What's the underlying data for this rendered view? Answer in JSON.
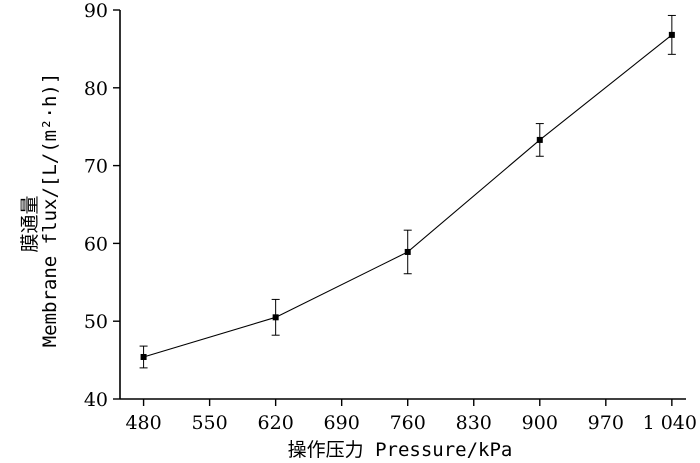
{
  "chart_data": {
    "type": "line",
    "title": "",
    "xlabel": "操作压力 Pressure/kPa",
    "ylabel_line1": "膜通量",
    "ylabel_line2": "Membrane flux/[L/(m²·h)]",
    "xlim": [
      455,
      1055
    ],
    "ylim": [
      40,
      90
    ],
    "x_ticks": [
      480,
      550,
      620,
      690,
      760,
      830,
      900,
      970,
      1040
    ],
    "x_tick_labels": [
      "480",
      "550",
      "620",
      "690",
      "760",
      "830",
      "900",
      "970",
      "1 040"
    ],
    "y_ticks": [
      40,
      50,
      60,
      70,
      80,
      90
    ],
    "y_tick_labels": [
      "40",
      "50",
      "60",
      "70",
      "80",
      "90"
    ],
    "grid": false,
    "series": [
      {
        "x": [
          480,
          620,
          760,
          900,
          1040
        ],
        "y": [
          45.4,
          50.5,
          58.9,
          73.3,
          86.8
        ],
        "err": [
          1.4,
          2.3,
          2.8,
          2.1,
          2.5
        ]
      }
    ]
  }
}
